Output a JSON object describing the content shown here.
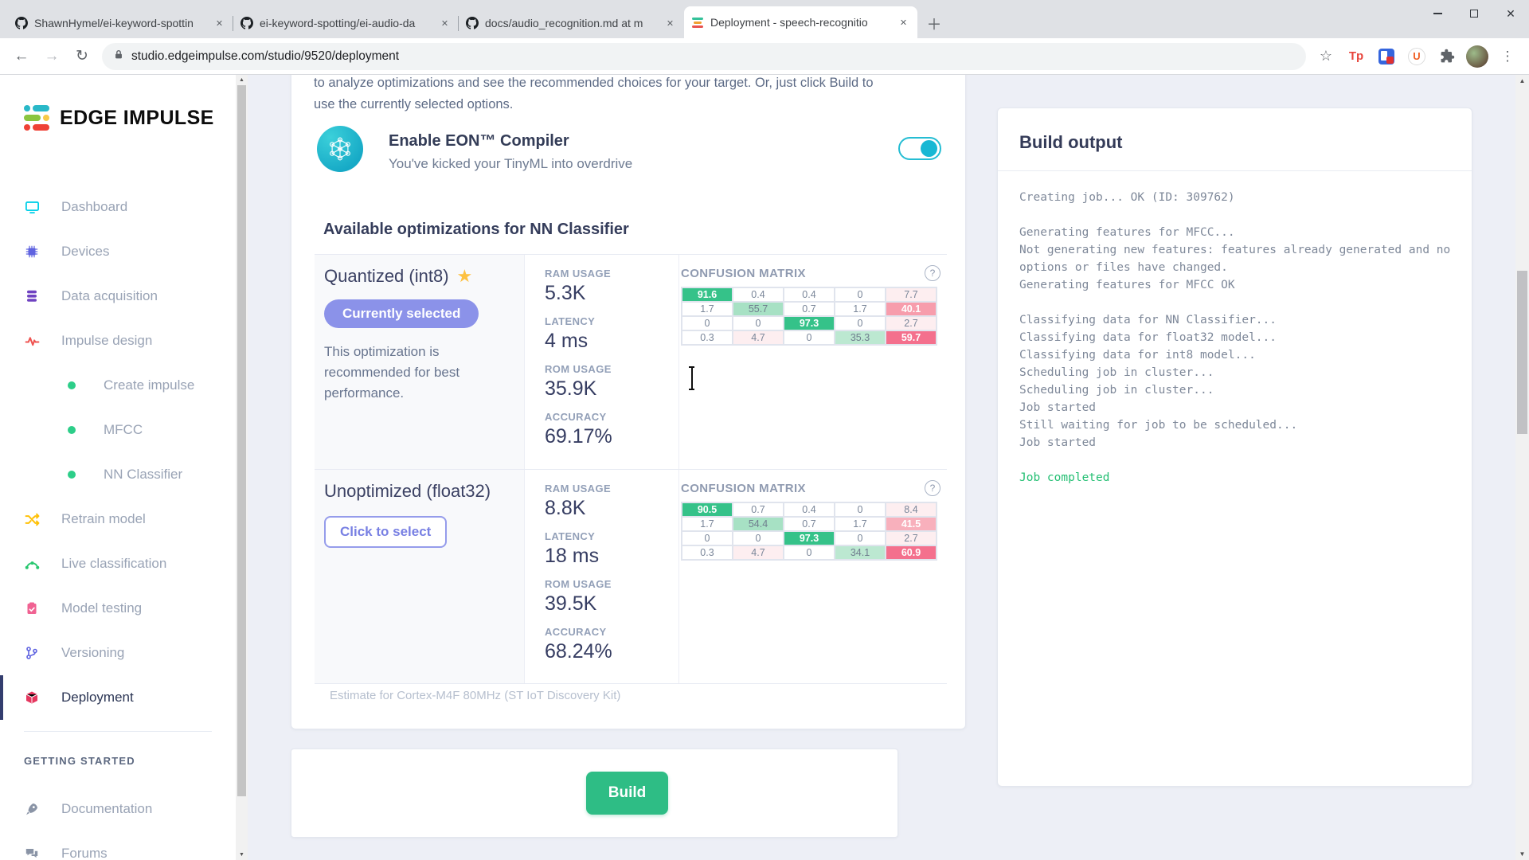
{
  "browser": {
    "tabs": [
      {
        "title": "ShawnHymel/ei-keyword-spottin",
        "favicon": "github",
        "active": false
      },
      {
        "title": "ei-keyword-spotting/ei-audio-da",
        "favicon": "github",
        "active": false
      },
      {
        "title": "docs/audio_recognition.md at m",
        "favicon": "github",
        "active": false
      },
      {
        "title": "Deployment - speech-recognitio",
        "favicon": "edge-impulse",
        "active": true
      }
    ],
    "url": "studio.edgeimpulse.com/studio/9520/deployment"
  },
  "sidebar": {
    "brand": "EDGE IMPULSE",
    "items": [
      {
        "id": "dashboard",
        "label": "Dashboard",
        "icon": "monitor",
        "color": "#00cfe8",
        "type": "item",
        "active": false
      },
      {
        "id": "devices",
        "label": "Devices",
        "icon": "chip",
        "color": "#5f63e0",
        "type": "item",
        "active": false
      },
      {
        "id": "data-acquisition",
        "label": "Data acquisition",
        "icon": "database",
        "color": "#6f42c1",
        "type": "item",
        "active": false
      },
      {
        "id": "impulse-design",
        "label": "Impulse design",
        "icon": "pulse",
        "color": "#ef5350",
        "type": "item",
        "active": false
      },
      {
        "id": "create-impulse",
        "label": "Create impulse",
        "icon": "dot",
        "color": "#2dce89",
        "type": "sub",
        "active": false
      },
      {
        "id": "mfcc",
        "label": "MFCC",
        "icon": "dot",
        "color": "#2dce89",
        "type": "sub",
        "active": false
      },
      {
        "id": "nn-classifier",
        "label": "NN Classifier",
        "icon": "dot",
        "color": "#2dce89",
        "type": "sub",
        "active": false
      },
      {
        "id": "retrain-model",
        "label": "Retrain model",
        "icon": "shuffle",
        "color": "#ffc107",
        "type": "item",
        "active": false
      },
      {
        "id": "live-classification",
        "label": "Live classification",
        "icon": "live",
        "color": "#28c76f",
        "type": "item",
        "active": false
      },
      {
        "id": "model-testing",
        "label": "Model testing",
        "icon": "clipboard",
        "color": "#f06292",
        "type": "item",
        "active": false
      },
      {
        "id": "versioning",
        "label": "Versioning",
        "icon": "branch",
        "color": "#5f63e0",
        "type": "item",
        "active": false
      },
      {
        "id": "deployment",
        "label": "Deployment",
        "icon": "cube",
        "color": "#e5365e",
        "type": "item",
        "active": true
      }
    ],
    "section_header": "GETTING STARTED",
    "secondary_items": [
      {
        "id": "documentation",
        "label": "Documentation",
        "icon": "rocket",
        "color": "#8a94a6",
        "type": "item",
        "active": false
      },
      {
        "id": "forums",
        "label": "Forums",
        "icon": "chat",
        "color": "#8a94a6",
        "type": "item",
        "active": false
      }
    ]
  },
  "main": {
    "intro_line1": "to analyze optimizations and see the recommended choices for your target. Or, just click Build to",
    "intro_line2": "use the currently selected options.",
    "eon": {
      "title": "Enable EON™ Compiler",
      "subtitle": "You've kicked your TinyML into overdrive",
      "enabled": true
    },
    "section_title": "Available optimizations for NN Classifier",
    "matrix_title": "CONFUSION MATRIX",
    "options": [
      {
        "name": "Quantized (int8)",
        "starred": true,
        "badge": "Currently selected",
        "description": "This optimization is recommended for best performance.",
        "stats": [
          {
            "label": "RAM USAGE",
            "value": "5.3K"
          },
          {
            "label": "LATENCY",
            "value": "4 ms"
          },
          {
            "label": "ROM USAGE",
            "value": "35.9K"
          },
          {
            "label": "ACCURACY",
            "value": "69.17%"
          }
        ],
        "matrix": [
          [
            {
              "v": "91.6",
              "c": "g2"
            },
            {
              "v": "0.4",
              "c": "w"
            },
            {
              "v": "0.4",
              "c": "w"
            },
            {
              "v": "0",
              "c": "w"
            },
            {
              "v": "7.7",
              "c": "p0"
            }
          ],
          [
            {
              "v": "1.7",
              "c": "w"
            },
            {
              "v": "55.7",
              "c": "g1"
            },
            {
              "v": "0.7",
              "c": "w"
            },
            {
              "v": "1.7",
              "c": "w"
            },
            {
              "v": "40.1",
              "c": "p2"
            }
          ],
          [
            {
              "v": "0",
              "c": "w"
            },
            {
              "v": "0",
              "c": "w"
            },
            {
              "v": "97.3",
              "c": "g2"
            },
            {
              "v": "0",
              "c": "w"
            },
            {
              "v": "2.7",
              "c": "p0"
            }
          ],
          [
            {
              "v": "0.3",
              "c": "w"
            },
            {
              "v": "4.7",
              "c": "p0"
            },
            {
              "v": "0",
              "c": "w"
            },
            {
              "v": "35.3",
              "c": "g0"
            },
            {
              "v": "59.7",
              "c": "p3"
            }
          ]
        ]
      },
      {
        "name": "Unoptimized (float32)",
        "starred": false,
        "button": "Click to select",
        "stats": [
          {
            "label": "RAM USAGE",
            "value": "8.8K"
          },
          {
            "label": "LATENCY",
            "value": "18 ms"
          },
          {
            "label": "ROM USAGE",
            "value": "39.5K"
          },
          {
            "label": "ACCURACY",
            "value": "68.24%"
          }
        ],
        "matrix": [
          [
            {
              "v": "90.5",
              "c": "g2"
            },
            {
              "v": "0.7",
              "c": "w"
            },
            {
              "v": "0.4",
              "c": "w"
            },
            {
              "v": "0",
              "c": "w"
            },
            {
              "v": "8.4",
              "c": "p0"
            }
          ],
          [
            {
              "v": "1.7",
              "c": "w"
            },
            {
              "v": "54.4",
              "c": "g1"
            },
            {
              "v": "0.7",
              "c": "w"
            },
            {
              "v": "1.7",
              "c": "w"
            },
            {
              "v": "41.5",
              "c": "p1"
            }
          ],
          [
            {
              "v": "0",
              "c": "w"
            },
            {
              "v": "0",
              "c": "w"
            },
            {
              "v": "97.3",
              "c": "g2"
            },
            {
              "v": "0",
              "c": "w"
            },
            {
              "v": "2.7",
              "c": "p0"
            }
          ],
          [
            {
              "v": "0.3",
              "c": "w"
            },
            {
              "v": "4.7",
              "c": "p0"
            },
            {
              "v": "0",
              "c": "w"
            },
            {
              "v": "34.1",
              "c": "g0"
            },
            {
              "v": "60.9",
              "c": "p3"
            }
          ]
        ]
      }
    ],
    "footnote": "Estimate for Cortex-M4F 80MHz (ST IoT Discovery Kit)",
    "build_button": "Build"
  },
  "build_output": {
    "title": "Build output",
    "lines": [
      {
        "text": "Creating job... OK (ID: 309762)",
        "status": "normal"
      },
      {
        "text": "",
        "status": "blank"
      },
      {
        "text": "Generating features for MFCC...",
        "status": "normal"
      },
      {
        "text": "Not generating new features: features already generated and no",
        "status": "normal"
      },
      {
        "text": "options or files have changed.",
        "status": "normal"
      },
      {
        "text": "Generating features for MFCC OK",
        "status": "normal"
      },
      {
        "text": "",
        "status": "blank"
      },
      {
        "text": "Classifying data for NN Classifier...",
        "status": "normal"
      },
      {
        "text": "Classifying data for float32 model...",
        "status": "normal"
      },
      {
        "text": "Classifying data for int8 model...",
        "status": "normal"
      },
      {
        "text": "Scheduling job in cluster...",
        "status": "normal"
      },
      {
        "text": "Scheduling job in cluster...",
        "status": "normal"
      },
      {
        "text": "Job started",
        "status": "normal"
      },
      {
        "text": "Still waiting for job to be scheduled...",
        "status": "normal"
      },
      {
        "text": "Job started",
        "status": "normal"
      },
      {
        "text": "",
        "status": "blank"
      },
      {
        "text": "Job completed",
        "status": "success"
      }
    ]
  },
  "colors": {
    "accent_teal": "#1cb8d4",
    "build_button_green": "#2ebd85",
    "badge_indigo": "#8b92e9",
    "success_text": "#24bf73",
    "matrix_green_strong": "#35c289",
    "matrix_green_light": "#a7e1c4",
    "matrix_green_lighter": "#bce8d1",
    "matrix_pink_faint": "#fdeef0",
    "matrix_pink_light": "#f8b0bc",
    "matrix_pink_medium": "#f79dac",
    "matrix_pink_strong": "#f4708d"
  }
}
